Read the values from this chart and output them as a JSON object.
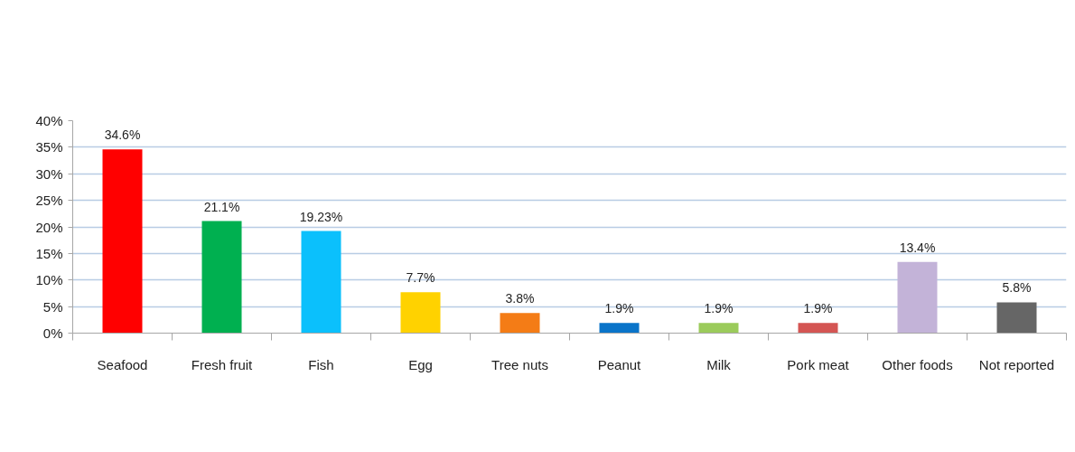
{
  "chart_data": {
    "type": "bar",
    "categories": [
      "Seafood",
      "Fresh fruit",
      "Fish",
      "Egg",
      "Tree nuts",
      "Peanut",
      "Milk",
      "Pork meat",
      "Other foods",
      "Not reported"
    ],
    "values": [
      34.6,
      21.1,
      19.23,
      7.7,
      3.8,
      1.9,
      1.9,
      1.9,
      13.4,
      5.8
    ],
    "colors": [
      "#ff0000",
      "#00b050",
      "#0bc0fc",
      "#ffd200",
      "#f47c16",
      "#0a74c9",
      "#9bcb5b",
      "#d45553",
      "#c3b3d8",
      "#666666"
    ],
    "value_labels": [
      "34.6%",
      "21.1%",
      "19.23%",
      "7.7%",
      "3.8%",
      "1.9%",
      "1.9%",
      "1.9%",
      "13.4%",
      "5.8%"
    ],
    "ylim": [
      0,
      40
    ],
    "yticks": [
      {
        "value": 0,
        "label": "0%"
      },
      {
        "value": 5,
        "label": "5%"
      },
      {
        "value": 10,
        "label": "10%"
      },
      {
        "value": 15,
        "label": "15%"
      },
      {
        "value": 20,
        "label": "20%"
      },
      {
        "value": 25,
        "label": "25%"
      },
      {
        "value": 30,
        "label": "30%"
      },
      {
        "value": 35,
        "label": "35%"
      },
      {
        "value": 40,
        "label": "40%"
      }
    ],
    "grid": "y"
  }
}
